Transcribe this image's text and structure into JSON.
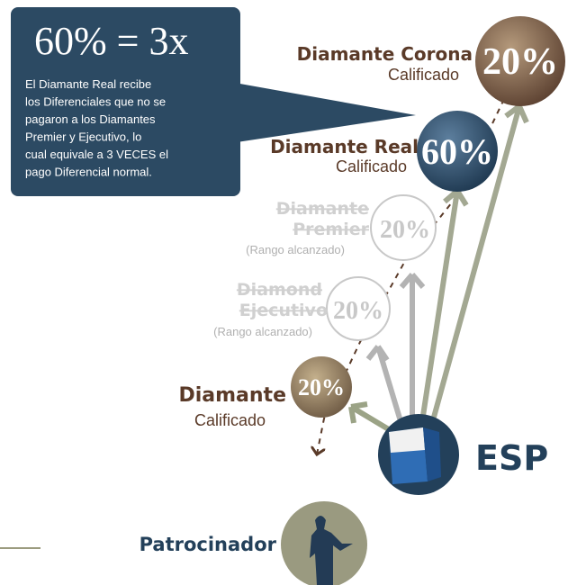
{
  "callout": {
    "title": "60% = 3x",
    "lines": [
      "El Diamante Real recibe",
      "los Diferenciales que no se",
      "pagaron a los Diamantes",
      "Premier y Ejecutivo, lo",
      "cual equivale a 3 VECES el",
      "pago Diferencial normal."
    ]
  },
  "nodes": [
    {
      "name": [
        "Diamante Corona"
      ],
      "status": "Calificado",
      "percent": "20%"
    },
    {
      "name": [
        "Diamante Real"
      ],
      "status": "Calificado",
      "percent": "60%"
    },
    {
      "name": [
        "Diamante",
        "Premier"
      ],
      "status": "(Rango alcanzado)",
      "percent": "20%"
    },
    {
      "name": [
        "Diamond",
        "Ejecutivo"
      ],
      "status": "(Rango alcanzado)",
      "percent": "20%"
    },
    {
      "name": [
        "Diamante"
      ],
      "status": "Calificado",
      "percent": "20%"
    }
  ],
  "esp": "ESP",
  "sponsor": "Patrocinador"
}
